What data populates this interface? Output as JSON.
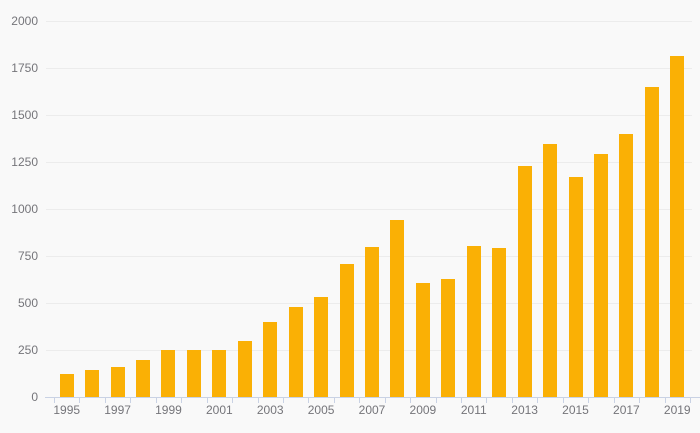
{
  "chart_data": {
    "type": "bar",
    "title": "",
    "xlabel": "",
    "ylabel": "",
    "categories": [
      "1995",
      "1996",
      "1997",
      "1998",
      "1999",
      "2000",
      "2001",
      "2002",
      "2003",
      "2004",
      "2005",
      "2006",
      "2007",
      "2008",
      "2009",
      "2010",
      "2011",
      "2012",
      "2013",
      "2014",
      "2015",
      "2016",
      "2017",
      "2018",
      "2019"
    ],
    "values": [
      120,
      145,
      160,
      195,
      250,
      250,
      250,
      300,
      400,
      480,
      530,
      705,
      800,
      940,
      605,
      630,
      805,
      795,
      1230,
      1345,
      1170,
      1295,
      1400,
      1650,
      1815
    ],
    "ylim": [
      0,
      2000
    ],
    "ytick_step": 250,
    "y_tick_labels": [
      "0",
      "250",
      "500",
      "750",
      "1000",
      "1250",
      "1500",
      "1750",
      "2000"
    ],
    "x_tick_labels": [
      "1995",
      "1997",
      "1999",
      "2001",
      "2003",
      "2005",
      "2007",
      "2009",
      "2011",
      "2013",
      "2015",
      "2017",
      "2019"
    ],
    "grid": "horizontal",
    "legend": "none"
  },
  "colors": {
    "background": "#f9f9f9",
    "bar": "#fab005",
    "gridline": "#ececec",
    "axis_line": "#c9d2e4",
    "tick_label": "#75757a"
  }
}
